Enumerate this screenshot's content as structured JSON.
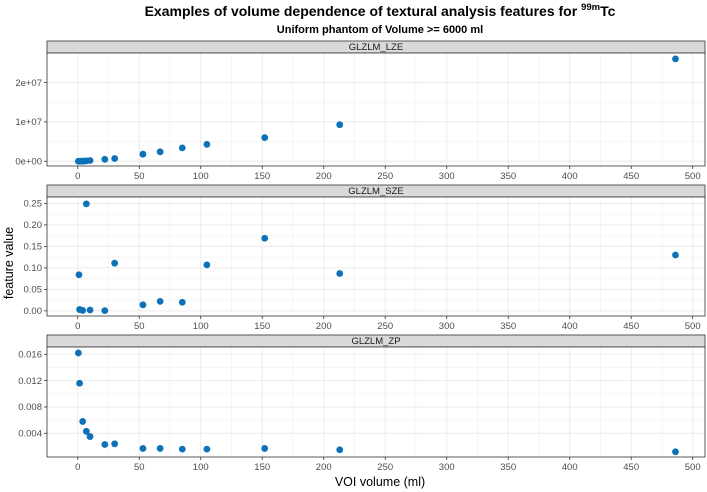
{
  "chart_data": {
    "type": "scatter",
    "title_main": "Examples of volume dependence of textural analysis features for ",
    "title_sup": "99m",
    "title_end": "Tc",
    "subtitle": "Uniform phantom of Volume >= 6000 ml",
    "xlabel": "VOI volume (ml)",
    "ylabel": "feature value",
    "xlim": [
      -25,
      510
    ],
    "xticks": [
      0,
      50,
      100,
      150,
      200,
      250,
      300,
      350,
      400,
      450,
      500
    ],
    "point_color": "#0e72b8",
    "panels": [
      {
        "name": "GLZLM_LZE",
        "ylim": [
          -1200000,
          27500000
        ],
        "yticks": [
          0,
          10000000,
          20000000
        ],
        "ytick_labels": [
          "0e+00",
          "1e+07",
          "2e+07"
        ],
        "points": [
          [
            0.5,
            0
          ],
          [
            1.5,
            10000
          ],
          [
            3,
            20000
          ],
          [
            5,
            50000
          ],
          [
            7,
            100000
          ],
          [
            10,
            200000
          ],
          [
            22,
            500000
          ],
          [
            30,
            700000
          ],
          [
            53,
            1800000
          ],
          [
            67,
            2400000
          ],
          [
            85,
            3400000
          ],
          [
            105,
            4300000
          ],
          [
            152,
            6000000
          ],
          [
            213,
            9300000
          ],
          [
            486,
            26000000
          ]
        ]
      },
      {
        "name": "GLZLM_SZE",
        "ylim": [
          -0.012,
          0.265
        ],
        "yticks": [
          0,
          0.05,
          0.1,
          0.15,
          0.2,
          0.25
        ],
        "ytick_labels": [
          "0.00",
          "0.05",
          "0.10",
          "0.15",
          "0.20",
          "0.25"
        ],
        "points": [
          [
            1,
            0.084
          ],
          [
            1.5,
            0.003
          ],
          [
            4,
            0.001
          ],
          [
            7,
            0.249
          ],
          [
            10,
            0.002
          ],
          [
            22,
            0.0005
          ],
          [
            30,
            0.111
          ],
          [
            53,
            0.014
          ],
          [
            67,
            0.022
          ],
          [
            85,
            0.02
          ],
          [
            105,
            0.107
          ],
          [
            152,
            0.169
          ],
          [
            213,
            0.087
          ],
          [
            486,
            0.13
          ]
        ]
      },
      {
        "name": "GLZLM_ZP",
        "ylim": [
          0.0004,
          0.0171
        ],
        "yticks": [
          0.004,
          0.008,
          0.012,
          0.016
        ],
        "ytick_labels": [
          "0.004",
          "0.008",
          "0.012",
          "0.016"
        ],
        "points": [
          [
            0.5,
            0.0162
          ],
          [
            1.5,
            0.0116
          ],
          [
            4,
            0.0058
          ],
          [
            7,
            0.0043
          ],
          [
            10,
            0.0035
          ],
          [
            22,
            0.0023
          ],
          [
            30,
            0.0024
          ],
          [
            53,
            0.0017
          ],
          [
            67,
            0.0017
          ],
          [
            85,
            0.0016
          ],
          [
            105,
            0.0016
          ],
          [
            152,
            0.0017
          ],
          [
            213,
            0.0015
          ],
          [
            486,
            0.0012
          ]
        ]
      }
    ]
  }
}
